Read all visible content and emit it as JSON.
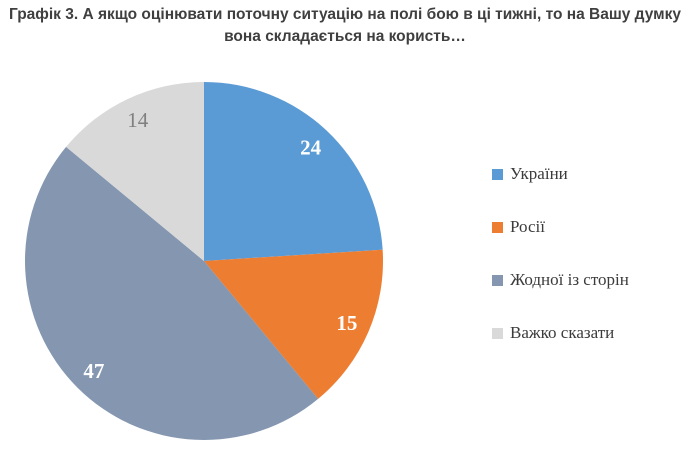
{
  "title": {
    "lines": [
      "Графік 3. А якщо оцінювати поточну ситуацію на полі бою в ці тижні, то на Вашу думку",
      "вона складається на користь…"
    ]
  },
  "chart_data": {
    "type": "pie",
    "title": "Графік 3. А якщо оцінювати поточну ситуацію на полі бою в ці тижні, то на Вашу думку вона складається на користь…",
    "categories": [
      "України",
      "Росії",
      "Жодної із сторін",
      "Важко сказати"
    ],
    "values": [
      24,
      15,
      47,
      14
    ],
    "colors": [
      "#5B9BD5",
      "#ED7D31",
      "#8496B0",
      "#D9D9D9"
    ],
    "data_label_colors": [
      "#FFFFFF",
      "#FFFFFF",
      "#FFFFFF",
      "#808080"
    ],
    "data_label_weights": [
      "bold",
      "bold",
      "bold",
      "normal"
    ],
    "start_angle_deg": 0,
    "direction": "clockwise",
    "legend_position": "right"
  },
  "legend": {
    "items": [
      {
        "label": "України",
        "color": "#5B9BD5"
      },
      {
        "label": "Росії",
        "color": "#ED7D31"
      },
      {
        "label": "Жодної із сторін",
        "color": "#8496B0"
      },
      {
        "label": "Важко сказати",
        "color": "#D9D9D9"
      }
    ]
  }
}
